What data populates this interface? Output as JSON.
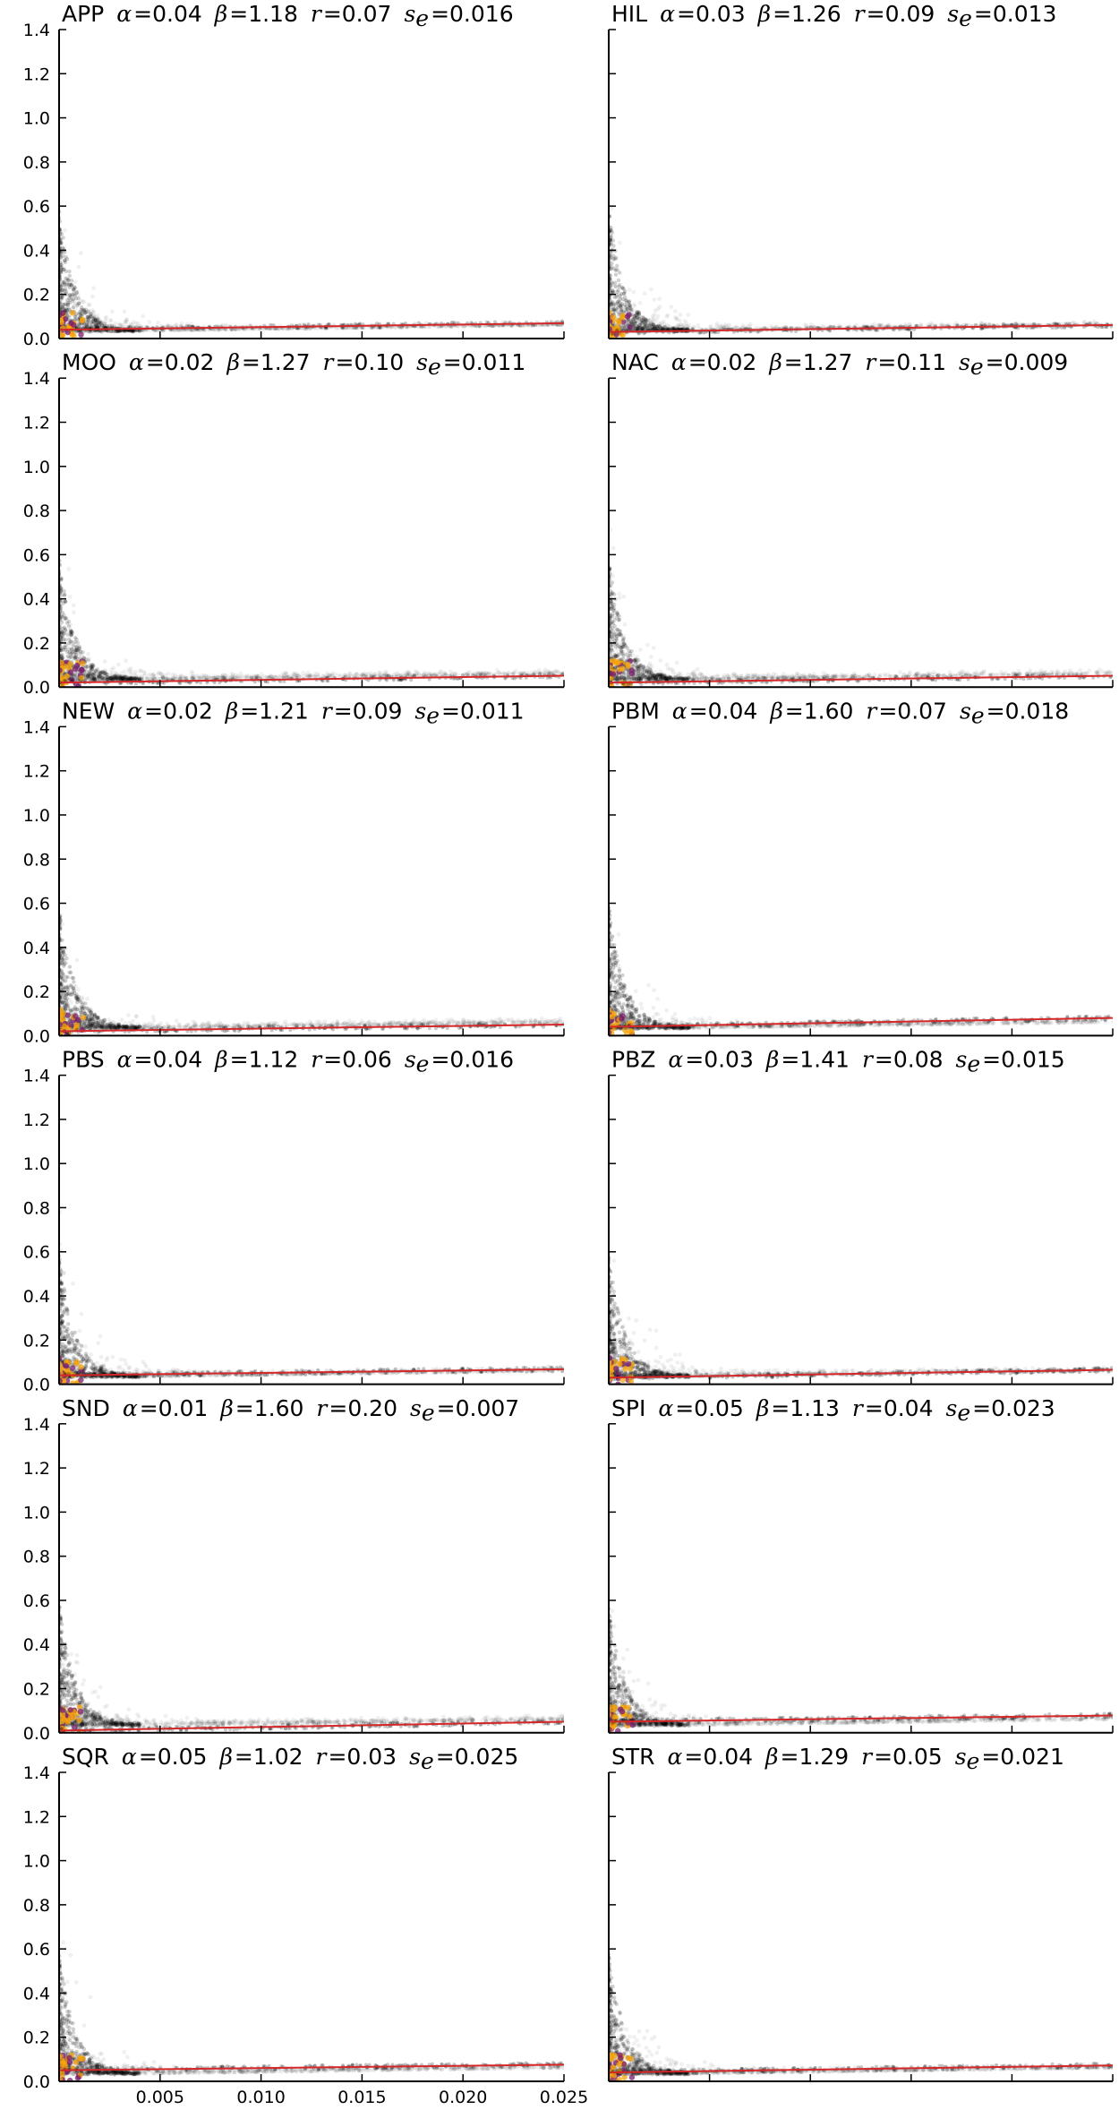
{
  "chart_data": [
    {
      "type": "scatter",
      "name": "APP",
      "alpha": "0.04",
      "beta": "1.18",
      "r": "0.07",
      "se": "0.016",
      "fit": {
        "intercept": 0.04,
        "slope": 1.18
      }
    },
    {
      "type": "scatter",
      "name": "HIL",
      "alpha": "0.03",
      "beta": "1.26",
      "r": "0.09",
      "se": "0.013",
      "fit": {
        "intercept": 0.03,
        "slope": 1.26
      }
    },
    {
      "type": "scatter",
      "name": "MOO",
      "alpha": "0.02",
      "beta": "1.27",
      "r": "0.10",
      "se": "0.011",
      "fit": {
        "intercept": 0.02,
        "slope": 1.27
      }
    },
    {
      "type": "scatter",
      "name": "NAC",
      "alpha": "0.02",
      "beta": "1.27",
      "r": "0.11",
      "se": "0.009",
      "fit": {
        "intercept": 0.02,
        "slope": 1.27
      }
    },
    {
      "type": "scatter",
      "name": "NEW",
      "alpha": "0.02",
      "beta": "1.21",
      "r": "0.09",
      "se": "0.011",
      "fit": {
        "intercept": 0.02,
        "slope": 1.21
      }
    },
    {
      "type": "scatter",
      "name": "PBM",
      "alpha": "0.04",
      "beta": "1.60",
      "r": "0.07",
      "se": "0.018",
      "fit": {
        "intercept": 0.04,
        "slope": 1.6
      }
    },
    {
      "type": "scatter",
      "name": "PBS",
      "alpha": "0.04",
      "beta": "1.12",
      "r": "0.06",
      "se": "0.016",
      "fit": {
        "intercept": 0.04,
        "slope": 1.12
      }
    },
    {
      "type": "scatter",
      "name": "PBZ",
      "alpha": "0.03",
      "beta": "1.41",
      "r": "0.08",
      "se": "0.015",
      "fit": {
        "intercept": 0.03,
        "slope": 1.41
      }
    },
    {
      "type": "scatter",
      "name": "SND",
      "alpha": "0.01",
      "beta": "1.60",
      "r": "0.20",
      "se": "0.007",
      "fit": {
        "intercept": 0.01,
        "slope": 1.6
      }
    },
    {
      "type": "scatter",
      "name": "SPI",
      "alpha": "0.05",
      "beta": "1.13",
      "r": "0.04",
      "se": "0.023",
      "fit": {
        "intercept": 0.05,
        "slope": 1.13
      }
    },
    {
      "type": "scatter",
      "name": "SQR",
      "alpha": "0.05",
      "beta": "1.02",
      "r": "0.03",
      "se": "0.025",
      "fit": {
        "intercept": 0.05,
        "slope": 1.02
      }
    },
    {
      "type": "scatter",
      "name": "STR",
      "alpha": "0.04",
      "beta": "1.29",
      "r": "0.05",
      "se": "0.021",
      "fit": {
        "intercept": 0.04,
        "slope": 1.29
      }
    }
  ],
  "axes": {
    "xlim": [
      0,
      0.025
    ],
    "ylim": [
      0,
      1.4
    ],
    "x_ticks": [
      "0.005",
      "0.010",
      "0.015",
      "0.020",
      "0.025"
    ],
    "y_ticks": [
      "0.0",
      "0.2",
      "0.4",
      "0.6",
      "0.8",
      "1.0",
      "1.2",
      "1.4"
    ],
    "grid": false
  },
  "colors": {
    "fit_line": "#d62728",
    "points": "#000000",
    "density_core": "#f4a30c",
    "density_mid": "#7a1e6c"
  }
}
